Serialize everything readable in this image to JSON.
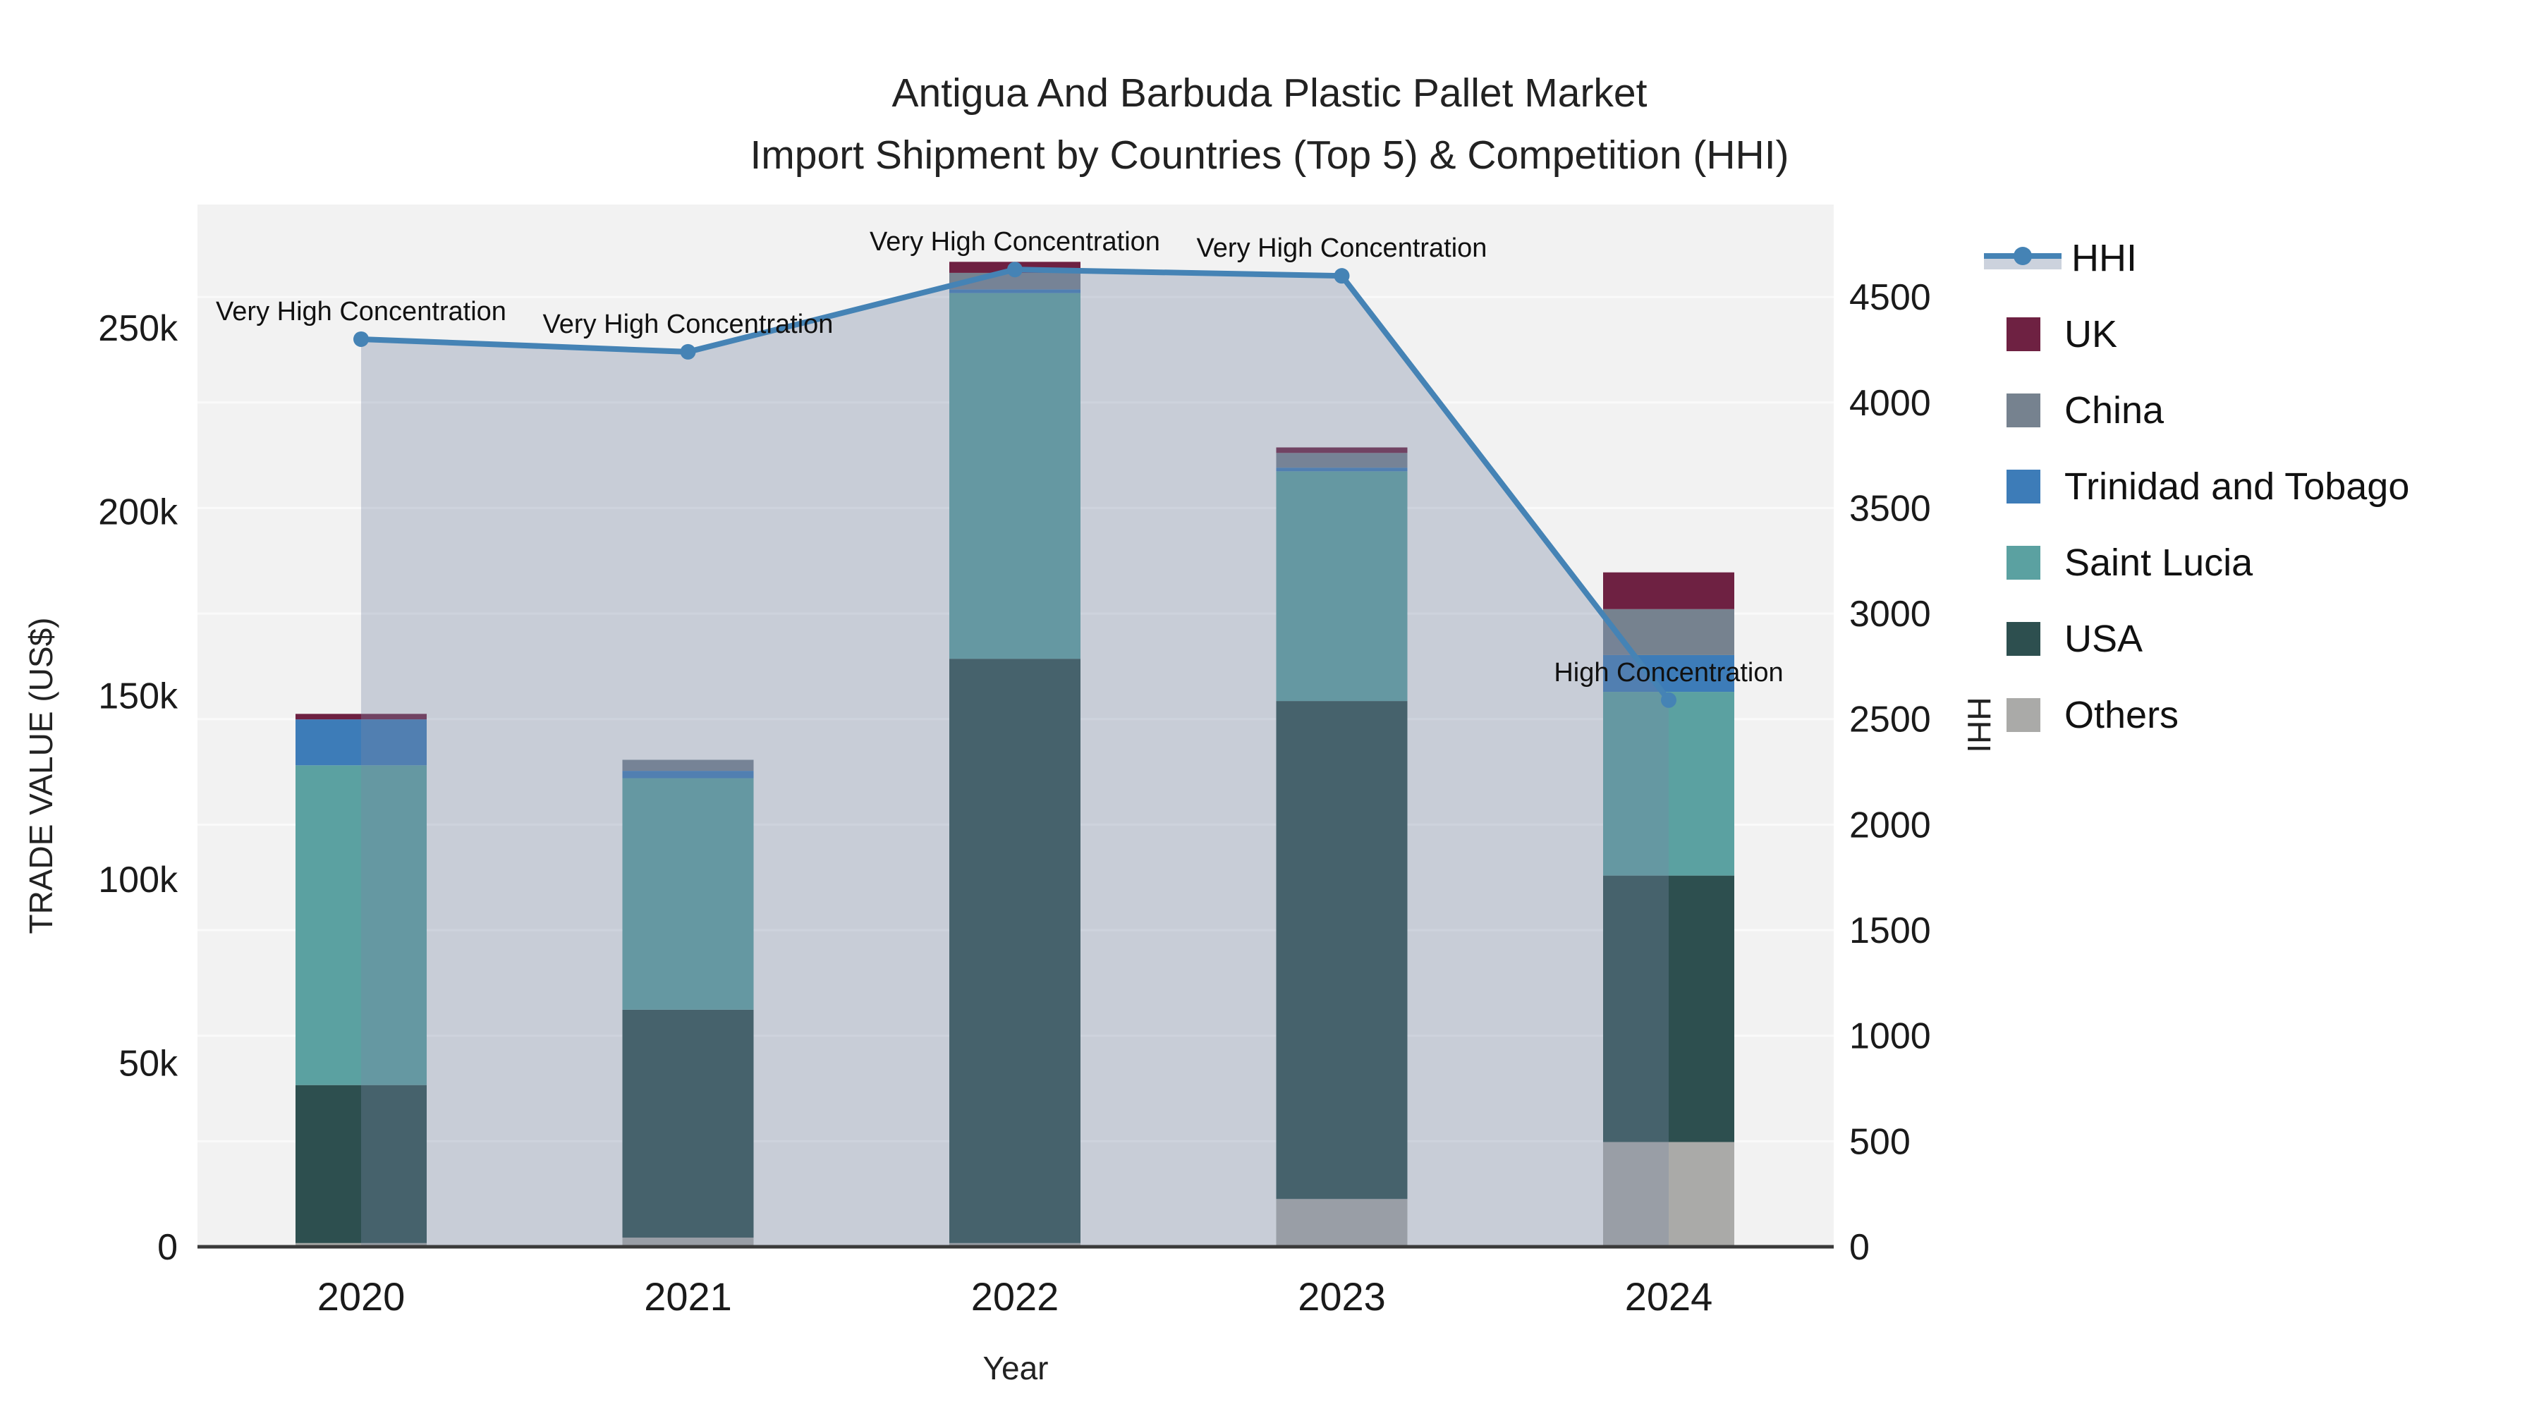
{
  "title": {
    "line1": "Antigua And Barbuda Plastic Pallet Market",
    "line2": "Import Shipment by Countries (Top 5) & Competition (HHI)"
  },
  "axes": {
    "x": {
      "title": "Year",
      "tick_labels": [
        "2020",
        "2021",
        "2022",
        "2023",
        "2024"
      ]
    },
    "y_left": {
      "title": "TRADE VALUE (US$)",
      "tick_labels": [
        "0",
        "50k",
        "100k",
        "150k",
        "200k",
        "250k"
      ],
      "tick_values_k": [
        0,
        50,
        100,
        150,
        200,
        250
      ]
    },
    "y_right": {
      "title": "HHI",
      "tick_labels": [
        "0",
        "500",
        "1000",
        "1500",
        "2000",
        "2500",
        "3000",
        "3500",
        "4000",
        "4500"
      ],
      "tick_values": [
        0,
        500,
        1000,
        1500,
        2000,
        2500,
        3000,
        3500,
        4000,
        4500
      ]
    }
  },
  "legend": {
    "items": [
      {
        "label": "HHI",
        "type": "line",
        "color": "#4583b5"
      },
      {
        "label": "UK",
        "type": "square",
        "color": "#6e2142"
      },
      {
        "label": "China",
        "type": "square",
        "color": "#76828f"
      },
      {
        "label": "Trinidad and Tobago",
        "type": "square",
        "color": "#3d7cb8"
      },
      {
        "label": "Saint Lucia",
        "type": "square",
        "color": "#5ba1a1"
      },
      {
        "label": "USA",
        "type": "square",
        "color": "#2d4f4f"
      },
      {
        "label": "Others",
        "type": "square",
        "color": "#aaaaa8"
      }
    ]
  },
  "annotations": [
    {
      "text": "Very High Concentration",
      "year": "2020"
    },
    {
      "text": "Very High Concentration",
      "year": "2021"
    },
    {
      "text": "Very High Concentration",
      "year": "2022"
    },
    {
      "text": "Very High Concentration",
      "year": "2023"
    },
    {
      "text": "High Concentration",
      "year": "2024"
    }
  ],
  "chart_data": {
    "type": "bar",
    "subtype": "stacked-bar-with-line-overlay",
    "title": "Antigua And Barbuda Plastic Pallet Market — Import Shipment by Countries (Top 5) & Competition (HHI)",
    "xlabel": "Year",
    "ylabel_left": "TRADE VALUE (US$)",
    "ylabel_right": "HHI",
    "categories": [
      "2020",
      "2021",
      "2022",
      "2023",
      "2024"
    ],
    "units": "thousand US$ (trade value), index points (HHI)",
    "stack_order_bottom_to_top": [
      "Others",
      "USA",
      "Saint Lucia",
      "Trinidad and Tobago",
      "China",
      "UK"
    ],
    "series": [
      {
        "name": "UK",
        "color": "#6e2142",
        "values_k": [
          1.5,
          0,
          3,
          1.5,
          10
        ]
      },
      {
        "name": "China",
        "color": "#76828f",
        "values_k": [
          0,
          3,
          4.5,
          4,
          12.5
        ]
      },
      {
        "name": "Trinidad and Tobago",
        "color": "#3d7cb8",
        "values_k": [
          12.5,
          2,
          1,
          1,
          10
        ]
      },
      {
        "name": "Saint Lucia",
        "color": "#5ba1a1",
        "values_k": [
          87,
          63,
          99.5,
          62.5,
          50
        ]
      },
      {
        "name": "USA",
        "color": "#2d4f4f",
        "values_k": [
          43,
          62,
          159,
          135.5,
          72.5
        ]
      },
      {
        "name": "Others",
        "color": "#aaaaa8",
        "values_k": [
          1,
          2.5,
          1,
          13,
          28.5
        ]
      }
    ],
    "bar_totals_k": [
      145,
      132.5,
      268,
      217.5,
      183.5
    ],
    "line_series": {
      "name": "HHI",
      "color": "#4583b5",
      "area_fill": "rgba(120,135,165,0.34)",
      "values": [
        4300,
        4240,
        4630,
        4600,
        2590
      ]
    },
    "axis_ranges": {
      "y_left_k": [
        0,
        283.6
      ],
      "y_right": [
        0,
        4938
      ]
    },
    "grid": "horizontal, every 500 HHI units",
    "legend_position": "right",
    "styles": {
      "plot_bg": "#f2f2f2",
      "page_bg": "#ffffff",
      "axis_line": "#3a3a3a",
      "gridline": "rgba(255,255,255,0.6)",
      "text": "#222222"
    }
  }
}
